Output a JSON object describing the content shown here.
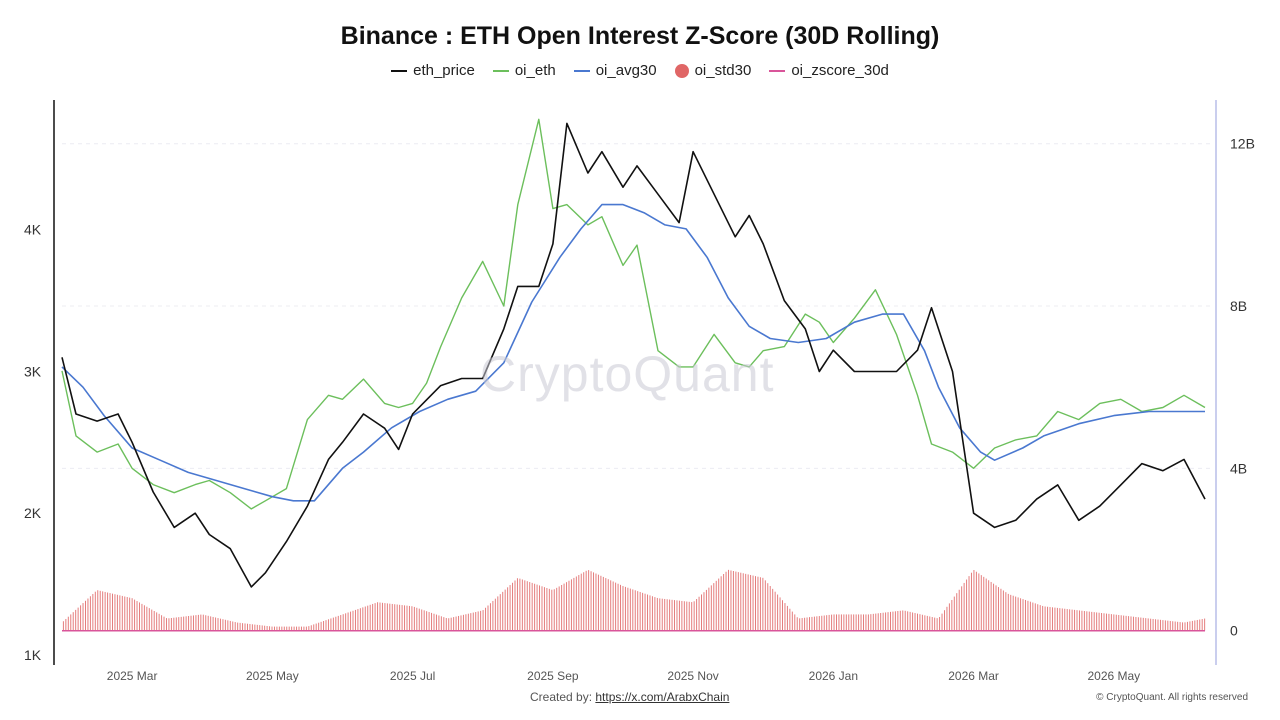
{
  "chart_data": {
    "type": "line",
    "title": "Binance : ETH Open Interest Z-Score (30D Rolling)",
    "legend": [
      {
        "name": "eth_price",
        "color": "#111111",
        "kind": "line"
      },
      {
        "name": "oi_eth",
        "color": "#6cbf5c",
        "kind": "line"
      },
      {
        "name": "oi_avg30",
        "color": "#4a78d0",
        "kind": "line"
      },
      {
        "name": "oi_std30",
        "color": "#e06666",
        "kind": "dot"
      },
      {
        "name": "oi_zscore_30d",
        "color": "#d9559a",
        "kind": "line"
      }
    ],
    "x_ticks": [
      "2025 Mar",
      "2025 May",
      "2025 Jul",
      "2025 Sep",
      "2025 Nov",
      "2026 Jan",
      "2026 Mar",
      "2026 May"
    ],
    "x_range_months": [
      0,
      16.4
    ],
    "y_left": {
      "ticks": [
        "1K",
        "2K",
        "3K",
        "4K"
      ],
      "values": [
        1000,
        2000,
        3000,
        4000
      ],
      "range": [
        1000,
        4950
      ]
    },
    "y_right": {
      "ticks": [
        "0",
        "4B",
        "8B",
        "12B"
      ],
      "values": [
        0,
        4,
        8,
        12
      ],
      "range": [
        -0.6,
        13.2
      ],
      "unit": "B"
    },
    "series": [
      {
        "name": "eth_price",
        "axis": "left",
        "x": [
          0,
          0.2,
          0.5,
          0.8,
          1.0,
          1.3,
          1.6,
          1.9,
          2.1,
          2.4,
          2.7,
          2.9,
          3.2,
          3.5,
          3.8,
          4.0,
          4.3,
          4.6,
          4.8,
          5.0,
          5.2,
          5.4,
          5.7,
          6.0,
          6.3,
          6.5,
          6.8,
          7.0,
          7.2,
          7.5,
          7.7,
          8.0,
          8.2,
          8.5,
          8.8,
          9.0,
          9.3,
          9.6,
          9.8,
          10.0,
          10.3,
          10.6,
          10.8,
          11.0,
          11.3,
          11.6,
          11.9,
          12.2,
          12.4,
          12.7,
          13.0,
          13.3,
          13.6,
          13.9,
          14.2,
          14.5,
          14.8,
          15.1,
          15.4,
          15.7,
          16.0,
          16.3
        ],
        "values": [
          3100,
          2700,
          2650,
          2700,
          2500,
          2150,
          1900,
          2000,
          1850,
          1750,
          1480,
          1580,
          1800,
          2050,
          2380,
          2500,
          2700,
          2600,
          2450,
          2700,
          2800,
          2900,
          2950,
          2950,
          3300,
          3600,
          3600,
          3900,
          4750,
          4400,
          4550,
          4300,
          4450,
          4250,
          4050,
          4550,
          4250,
          3950,
          4100,
          3900,
          3500,
          3300,
          3000,
          3150,
          3000,
          3000,
          3000,
          3150,
          3450,
          3000,
          2000,
          1900,
          1950,
          2100,
          2200,
          1950,
          2050,
          2200,
          2350,
          2300,
          2380,
          2100
        ]
      },
      {
        "name": "oi_eth",
        "axis": "right",
        "x": [
          0,
          0.2,
          0.5,
          0.8,
          1.0,
          1.3,
          1.6,
          1.9,
          2.1,
          2.4,
          2.7,
          2.9,
          3.2,
          3.5,
          3.8,
          4.0,
          4.3,
          4.6,
          4.8,
          5.0,
          5.2,
          5.4,
          5.7,
          6.0,
          6.3,
          6.5,
          6.8,
          7.0,
          7.2,
          7.5,
          7.7,
          8.0,
          8.2,
          8.5,
          8.8,
          9.0,
          9.3,
          9.6,
          9.8,
          10.0,
          10.3,
          10.6,
          10.8,
          11.0,
          11.3,
          11.6,
          11.9,
          12.2,
          12.4,
          12.7,
          13.0,
          13.3,
          13.6,
          13.9,
          14.2,
          14.5,
          14.8,
          15.1,
          15.4,
          15.7,
          16.0,
          16.3
        ],
        "values": [
          6.4,
          4.8,
          4.4,
          4.6,
          4.0,
          3.6,
          3.4,
          3.6,
          3.7,
          3.4,
          3.0,
          3.2,
          3.5,
          5.2,
          5.8,
          5.7,
          6.2,
          5.6,
          5.5,
          5.6,
          6.1,
          7.0,
          8.2,
          9.1,
          8.0,
          10.5,
          12.6,
          10.4,
          10.5,
          10.0,
          10.2,
          9.0,
          9.5,
          6.9,
          6.5,
          6.5,
          7.3,
          6.6,
          6.5,
          6.9,
          7.0,
          7.8,
          7.6,
          7.1,
          7.7,
          8.4,
          7.3,
          5.8,
          4.6,
          4.4,
          4.0,
          4.5,
          4.7,
          4.8,
          5.4,
          5.2,
          5.6,
          5.7,
          5.4,
          5.5,
          5.8,
          5.5
        ]
      },
      {
        "name": "oi_avg30",
        "axis": "right",
        "x": [
          0,
          0.3,
          0.6,
          1.0,
          1.4,
          1.8,
          2.2,
          2.6,
          3.0,
          3.3,
          3.6,
          4.0,
          4.3,
          4.7,
          5.1,
          5.5,
          5.9,
          6.3,
          6.7,
          7.1,
          7.4,
          7.7,
          8.0,
          8.3,
          8.6,
          8.9,
          9.2,
          9.5,
          9.8,
          10.1,
          10.5,
          10.9,
          11.3,
          11.7,
          12.0,
          12.3,
          12.5,
          12.8,
          13.1,
          13.3,
          13.7,
          14.0,
          14.5,
          15.0,
          15.5,
          16.0,
          16.3
        ],
        "values": [
          6.5,
          6.0,
          5.3,
          4.5,
          4.2,
          3.9,
          3.7,
          3.5,
          3.3,
          3.2,
          3.2,
          4.0,
          4.4,
          5.0,
          5.4,
          5.7,
          5.9,
          6.6,
          8.1,
          9.2,
          9.9,
          10.5,
          10.5,
          10.3,
          10.0,
          9.9,
          9.2,
          8.2,
          7.5,
          7.2,
          7.1,
          7.2,
          7.6,
          7.8,
          7.8,
          6.9,
          6.0,
          5.0,
          4.4,
          4.2,
          4.5,
          4.8,
          5.1,
          5.3,
          5.4,
          5.4,
          5.4
        ]
      },
      {
        "name": "oi_std30",
        "axis": "right",
        "x": [
          0,
          0.5,
          1.0,
          1.5,
          2.0,
          2.5,
          3.0,
          3.5,
          4.0,
          4.5,
          5.0,
          5.5,
          6.0,
          6.5,
          7.0,
          7.5,
          8.0,
          8.5,
          9.0,
          9.5,
          10.0,
          10.5,
          11.0,
          11.5,
          12.0,
          12.5,
          13.0,
          13.5,
          14.0,
          14.5,
          15.0,
          15.5,
          16.0,
          16.3
        ],
        "values": [
          0.2,
          1.0,
          0.8,
          0.3,
          0.4,
          0.2,
          0.1,
          0.1,
          0.4,
          0.7,
          0.6,
          0.3,
          0.5,
          1.3,
          1.0,
          1.5,
          1.1,
          0.8,
          0.7,
          1.5,
          1.3,
          0.3,
          0.4,
          0.4,
          0.5,
          0.3,
          1.5,
          0.9,
          0.6,
          0.5,
          0.4,
          0.3,
          0.2,
          0.3
        ]
      },
      {
        "name": "oi_zscore_30d",
        "axis": "right",
        "x": [
          0,
          16.3
        ],
        "values": [
          0,
          0
        ]
      }
    ]
  },
  "watermark": "CryptoQuant",
  "footer": {
    "created_prefix": "Created by: ",
    "created_link": "https://x.com/ArabxChain",
    "copyright": "© CryptoQuant. All rights reserved"
  }
}
